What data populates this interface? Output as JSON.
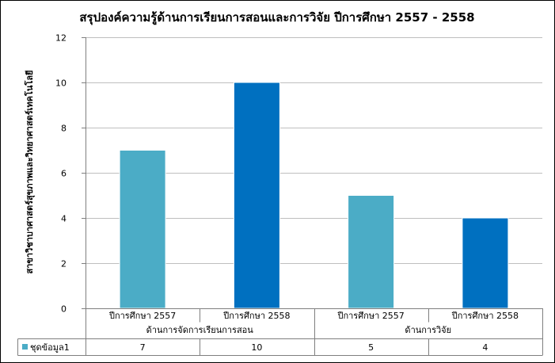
{
  "chart_data": {
    "type": "bar",
    "title": "สรุปองค์ความรู้ด้านการเรียนการสอนและการวิจัย ปีการศึกษา 2557 - 2558",
    "ylabel": "สาขาวิชาบาศาสตร์สุขภาพและวิทยาศาสตร์เทคโนโลยี",
    "xlabel": "",
    "ylim": [
      0,
      12
    ],
    "yticks": [
      "0",
      "2",
      "4",
      "6",
      "8",
      "10",
      "12"
    ],
    "grid": true,
    "groups": [
      {
        "label": "ด้านการจัดการเรียนการสอน",
        "categories": [
          "ปีการศึกษา 2557",
          "ปีการศึกษา 2558"
        ]
      },
      {
        "label": "ด้านการวิจัย",
        "categories": [
          "ปีการศึกษา 2557",
          "ปีการศึกษา 2558"
        ]
      }
    ],
    "series": [
      {
        "name": "ชุดข้อมูล1",
        "values": [
          7,
          10,
          5,
          4
        ],
        "colors": [
          "#4bacc6",
          "#0070c0",
          "#4bacc6",
          "#0070c0"
        ]
      }
    ],
    "data_table": {
      "legend_key_color": "#4bacc6",
      "row_label": "ชุดข้อมูล1",
      "cells": [
        "7",
        "10",
        "5",
        "4"
      ]
    }
  }
}
